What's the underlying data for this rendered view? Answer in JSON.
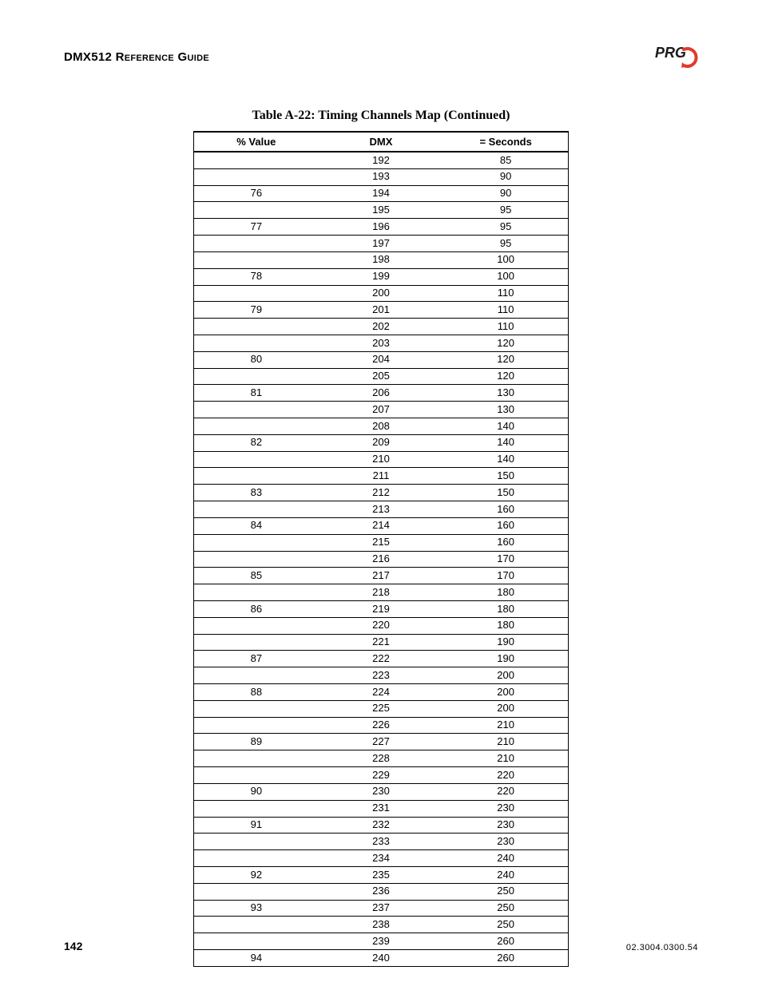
{
  "header": {
    "title": "DMX512 Reference Guide"
  },
  "logo": {
    "text": "PRG",
    "text_color": "#1a1a1a",
    "swoosh_color": "#e23a2e"
  },
  "table": {
    "caption": "Table A-22: Timing Channels Map  (Continued)",
    "columns": [
      "% Value",
      "DMX",
      "= Seconds"
    ],
    "rows": [
      [
        "",
        "192",
        "85"
      ],
      [
        "",
        "193",
        "90"
      ],
      [
        "76",
        "194",
        "90"
      ],
      [
        "",
        "195",
        "95"
      ],
      [
        "77",
        "196",
        "95"
      ],
      [
        "",
        "197",
        "95"
      ],
      [
        "",
        "198",
        "100"
      ],
      [
        "78",
        "199",
        "100"
      ],
      [
        "",
        "200",
        "110"
      ],
      [
        "79",
        "201",
        "110"
      ],
      [
        "",
        "202",
        "110"
      ],
      [
        "",
        "203",
        "120"
      ],
      [
        "80",
        "204",
        "120"
      ],
      [
        "",
        "205",
        "120"
      ],
      [
        "81",
        "206",
        "130"
      ],
      [
        "",
        "207",
        "130"
      ],
      [
        "",
        "208",
        "140"
      ],
      [
        "82",
        "209",
        "140"
      ],
      [
        "",
        "210",
        "140"
      ],
      [
        "",
        "211",
        "150"
      ],
      [
        "83",
        "212",
        "150"
      ],
      [
        "",
        "213",
        "160"
      ],
      [
        "84",
        "214",
        "160"
      ],
      [
        "",
        "215",
        "160"
      ],
      [
        "",
        "216",
        "170"
      ],
      [
        "85",
        "217",
        "170"
      ],
      [
        "",
        "218",
        "180"
      ],
      [
        "86",
        "219",
        "180"
      ],
      [
        "",
        "220",
        "180"
      ],
      [
        "",
        "221",
        "190"
      ],
      [
        "87",
        "222",
        "190"
      ],
      [
        "",
        "223",
        "200"
      ],
      [
        "88",
        "224",
        "200"
      ],
      [
        "",
        "225",
        "200"
      ],
      [
        "",
        "226",
        "210"
      ],
      [
        "89",
        "227",
        "210"
      ],
      [
        "",
        "228",
        "210"
      ],
      [
        "",
        "229",
        "220"
      ],
      [
        "90",
        "230",
        "220"
      ],
      [
        "",
        "231",
        "230"
      ],
      [
        "91",
        "232",
        "230"
      ],
      [
        "",
        "233",
        "230"
      ],
      [
        "",
        "234",
        "240"
      ],
      [
        "92",
        "235",
        "240"
      ],
      [
        "",
        "236",
        "250"
      ],
      [
        "93",
        "237",
        "250"
      ],
      [
        "",
        "238",
        "250"
      ],
      [
        "",
        "239",
        "260"
      ],
      [
        "94",
        "240",
        "260"
      ]
    ],
    "border_color": "#000000",
    "font_size": 13,
    "header_font_weight": "bold"
  },
  "footer": {
    "page_number": "142",
    "doc_id": "02.3004.0300.54"
  }
}
